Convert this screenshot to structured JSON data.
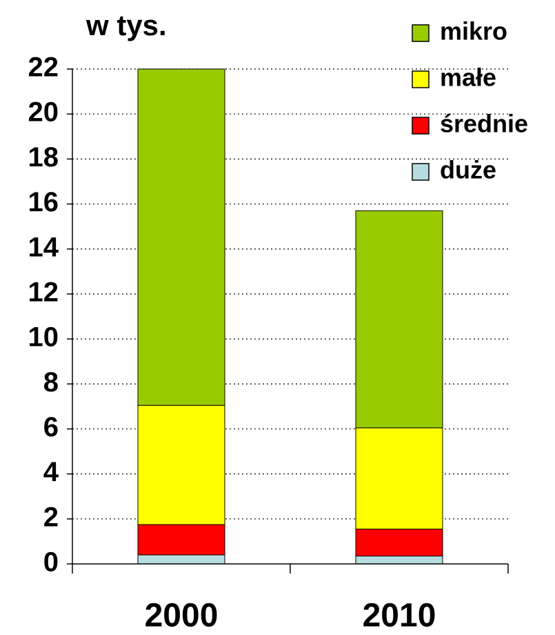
{
  "chart_data": {
    "type": "stacked_bar",
    "title": "w tys.",
    "categories": [
      "2000",
      "2010"
    ],
    "series": [
      {
        "name": "duże",
        "color": "#b8dde0",
        "values": [
          0.4,
          0.35
        ]
      },
      {
        "name": "średnie",
        "color": "#ff0000",
        "values": [
          1.35,
          1.2
        ]
      },
      {
        "name": "małe",
        "color": "#ffff00",
        "values": [
          5.3,
          4.5
        ]
      },
      {
        "name": "mikro",
        "color": "#99cc00",
        "values": [
          14.95,
          9.65
        ]
      }
    ],
    "ylim": [
      0,
      22
    ],
    "yticks": [
      0,
      2,
      4,
      6,
      8,
      10,
      12,
      14,
      16,
      18,
      20,
      22
    ],
    "grid": true,
    "legend": "top-right"
  }
}
